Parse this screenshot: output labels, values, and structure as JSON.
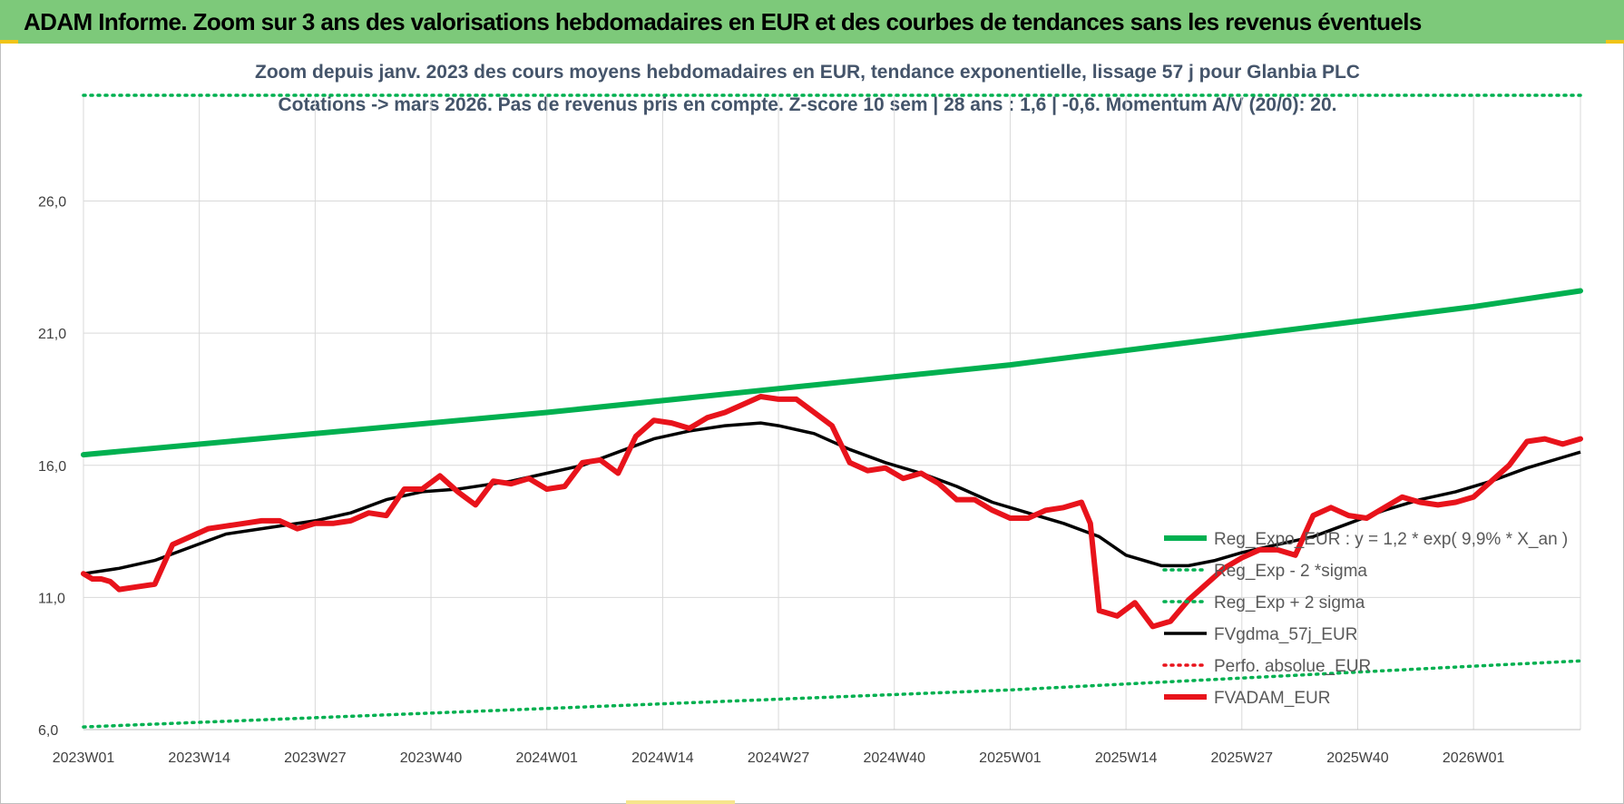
{
  "banner": {
    "title": "ADAM Informe. Zoom sur 3 ans des valorisations hebdomadaires en EUR et des courbes de tendances sans les revenus éventuels"
  },
  "colors": {
    "banner_bg": "#7dc97a",
    "green": "#00b050",
    "black": "#000000",
    "red": "#e8131b",
    "subtitle": "#44546a"
  },
  "chart_data": {
    "type": "line",
    "subtitle_line1": "Zoom depuis janv. 2023 des cours moyens hebdomadaires en EUR, tendance exponentielle, lissage 57 j pour Glanbia PLC",
    "subtitle_line2": "Cotations -> mars 2026. Pas de revenus pris en compte. Z-score 10 sem | 28 ans : 1,6 | -0,6. Momentum A/V (20/0): 20.",
    "x_tick_labels": [
      "2023W01",
      "2023W14",
      "2023W27",
      "2023W40",
      "2024W01",
      "2024W14",
      "2024W27",
      "2024W40",
      "2025W01",
      "2025W14",
      "2025W27",
      "2025W40",
      "2026W01"
    ],
    "x_tick_week_index": [
      0,
      13,
      26,
      39,
      52,
      65,
      78,
      91,
      104,
      117,
      130,
      143,
      156
    ],
    "x_range_weeks": [
      0,
      168
    ],
    "y_tick_labels": [
      "6,0",
      "11,0",
      "16,0",
      "21,0",
      "26,0"
    ],
    "y_ticks": [
      6,
      11,
      16,
      21,
      26
    ],
    "ylim": [
      6,
      30
    ],
    "grid": true,
    "legend_position": "right-bottom",
    "series": [
      {
        "name": "Reg_Expo_EUR : y = 1,2 * exp( 9,9% *  X_an )",
        "style": "solid-thick",
        "color": "#00b050",
        "points": [
          [
            0,
            16.4
          ],
          [
            52,
            18.0
          ],
          [
            104,
            19.8
          ],
          [
            156,
            22.0
          ],
          [
            168,
            22.6
          ]
        ]
      },
      {
        "name": "Reg_Exp - 2 *sigma",
        "style": "dotted",
        "color": "#00b050",
        "points": [
          [
            0,
            6.1
          ],
          [
            52,
            6.8
          ],
          [
            104,
            7.5
          ],
          [
            156,
            8.4
          ],
          [
            168,
            8.6
          ]
        ]
      },
      {
        "name": "Reg_Exp + 2 sigma",
        "style": "dotted",
        "color": "#00b050",
        "points": [
          [
            0,
            30.0
          ],
          [
            168,
            30.0
          ]
        ]
      },
      {
        "name": "FVgdma_57j_EUR",
        "style": "solid",
        "color": "#000000",
        "points": [
          [
            0,
            11.9
          ],
          [
            4,
            12.1
          ],
          [
            8,
            12.4
          ],
          [
            12,
            12.9
          ],
          [
            16,
            13.4
          ],
          [
            20,
            13.6
          ],
          [
            26,
            13.9
          ],
          [
            30,
            14.2
          ],
          [
            34,
            14.7
          ],
          [
            38,
            15.0
          ],
          [
            42,
            15.1
          ],
          [
            48,
            15.4
          ],
          [
            52,
            15.7
          ],
          [
            56,
            16.0
          ],
          [
            60,
            16.5
          ],
          [
            64,
            17.0
          ],
          [
            68,
            17.3
          ],
          [
            72,
            17.5
          ],
          [
            76,
            17.6
          ],
          [
            78,
            17.5
          ],
          [
            82,
            17.2
          ],
          [
            86,
            16.6
          ],
          [
            90,
            16.1
          ],
          [
            94,
            15.7
          ],
          [
            98,
            15.2
          ],
          [
            102,
            14.6
          ],
          [
            106,
            14.2
          ],
          [
            110,
            13.8
          ],
          [
            114,
            13.3
          ],
          [
            117,
            12.6
          ],
          [
            121,
            12.2
          ],
          [
            124,
            12.2
          ],
          [
            127,
            12.4
          ],
          [
            130,
            12.7
          ],
          [
            134,
            13.0
          ],
          [
            138,
            13.3
          ],
          [
            142,
            13.8
          ],
          [
            146,
            14.3
          ],
          [
            150,
            14.7
          ],
          [
            154,
            15.0
          ],
          [
            158,
            15.4
          ],
          [
            162,
            15.9
          ],
          [
            166,
            16.3
          ],
          [
            168,
            16.5
          ]
        ]
      },
      {
        "name": "Perfo. absolue_EUR",
        "style": "dotted",
        "color": "#e8131b",
        "points": []
      },
      {
        "name": "FVADAM_EUR",
        "style": "solid-thick",
        "color": "#e8131b",
        "points": [
          [
            0,
            11.9
          ],
          [
            1,
            11.7
          ],
          [
            2,
            11.7
          ],
          [
            3,
            11.6
          ],
          [
            4,
            11.3
          ],
          [
            6,
            11.4
          ],
          [
            8,
            11.5
          ],
          [
            10,
            13.0
          ],
          [
            12,
            13.3
          ],
          [
            14,
            13.6
          ],
          [
            16,
            13.7
          ],
          [
            18,
            13.8
          ],
          [
            20,
            13.9
          ],
          [
            22,
            13.9
          ],
          [
            24,
            13.6
          ],
          [
            26,
            13.8
          ],
          [
            28,
            13.8
          ],
          [
            30,
            13.9
          ],
          [
            32,
            14.2
          ],
          [
            34,
            14.1
          ],
          [
            36,
            15.1
          ],
          [
            38,
            15.1
          ],
          [
            40,
            15.6
          ],
          [
            42,
            15.0
          ],
          [
            44,
            14.5
          ],
          [
            46,
            15.4
          ],
          [
            48,
            15.3
          ],
          [
            50,
            15.5
          ],
          [
            52,
            15.1
          ],
          [
            54,
            15.2
          ],
          [
            56,
            16.1
          ],
          [
            58,
            16.2
          ],
          [
            60,
            15.7
          ],
          [
            62,
            17.1
          ],
          [
            64,
            17.7
          ],
          [
            66,
            17.6
          ],
          [
            68,
            17.4
          ],
          [
            70,
            17.8
          ],
          [
            72,
            18.0
          ],
          [
            74,
            18.3
          ],
          [
            76,
            18.6
          ],
          [
            78,
            18.5
          ],
          [
            80,
            18.5
          ],
          [
            82,
            18.0
          ],
          [
            84,
            17.5
          ],
          [
            86,
            16.1
          ],
          [
            88,
            15.8
          ],
          [
            90,
            15.9
          ],
          [
            92,
            15.5
          ],
          [
            94,
            15.7
          ],
          [
            96,
            15.3
          ],
          [
            98,
            14.7
          ],
          [
            100,
            14.7
          ],
          [
            102,
            14.3
          ],
          [
            104,
            14.0
          ],
          [
            106,
            14.0
          ],
          [
            108,
            14.3
          ],
          [
            110,
            14.4
          ],
          [
            112,
            14.6
          ],
          [
            113,
            13.8
          ],
          [
            114,
            10.5
          ],
          [
            116,
            10.3
          ],
          [
            118,
            10.8
          ],
          [
            120,
            9.9
          ],
          [
            122,
            10.1
          ],
          [
            124,
            10.9
          ],
          [
            126,
            11.5
          ],
          [
            128,
            12.1
          ],
          [
            130,
            12.5
          ],
          [
            132,
            12.8
          ],
          [
            134,
            12.8
          ],
          [
            136,
            12.6
          ],
          [
            138,
            14.1
          ],
          [
            140,
            14.4
          ],
          [
            142,
            14.1
          ],
          [
            144,
            14.0
          ],
          [
            146,
            14.4
          ],
          [
            148,
            14.8
          ],
          [
            150,
            14.6
          ],
          [
            152,
            14.5
          ],
          [
            154,
            14.6
          ],
          [
            156,
            14.8
          ],
          [
            158,
            15.4
          ],
          [
            160,
            16.0
          ],
          [
            162,
            16.9
          ],
          [
            164,
            17.0
          ],
          [
            166,
            16.8
          ],
          [
            168,
            17.0
          ]
        ]
      }
    ]
  }
}
